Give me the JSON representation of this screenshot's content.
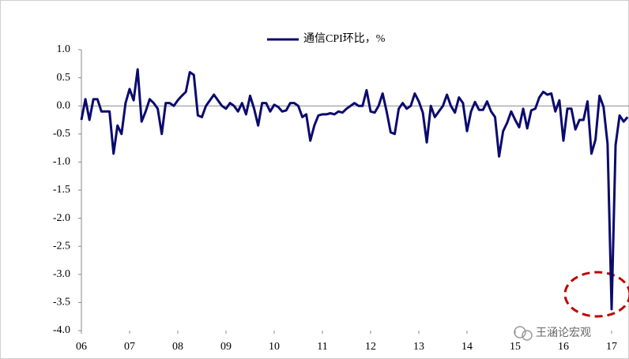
{
  "chart_data": {
    "type": "line",
    "legend_label": "通信CPI环比，%",
    "watermark": "王涵论宏观",
    "categories": [
      "06",
      null,
      null,
      null,
      null,
      null,
      null,
      null,
      null,
      null,
      null,
      null,
      "07",
      null,
      null,
      null,
      null,
      null,
      null,
      null,
      null,
      null,
      null,
      null,
      "08",
      null,
      null,
      null,
      null,
      null,
      null,
      null,
      null,
      null,
      null,
      null,
      "09",
      null,
      null,
      null,
      null,
      null,
      null,
      null,
      null,
      null,
      null,
      null,
      "10",
      null,
      null,
      null,
      null,
      null,
      null,
      null,
      null,
      null,
      null,
      null,
      "11",
      null,
      null,
      null,
      null,
      null,
      null,
      null,
      null,
      null,
      null,
      null,
      "12",
      null,
      null,
      null,
      null,
      null,
      null,
      null,
      null,
      null,
      null,
      null,
      "13",
      null,
      null,
      null,
      null,
      null,
      null,
      null,
      null,
      null,
      null,
      null,
      "14",
      null,
      null,
      null,
      null,
      null,
      null,
      null,
      null,
      null,
      null,
      null,
      "15",
      null,
      null,
      null,
      null,
      null,
      null,
      null,
      null,
      null,
      null,
      null,
      "16",
      null,
      null,
      null,
      null,
      null,
      null,
      null,
      null,
      null,
      null,
      null,
      "17",
      null,
      null,
      null,
      null
    ],
    "series": [
      {
        "name": "通信CPI环比，%",
        "color": "#0a0a6e",
        "values": [
          -0.25,
          0.12,
          -0.25,
          0.12,
          0.12,
          -0.1,
          -0.1,
          -0.1,
          -0.85,
          -0.35,
          -0.5,
          0.05,
          0.3,
          0.1,
          0.65,
          -0.28,
          -0.1,
          0.12,
          0.05,
          -0.05,
          -0.5,
          0.05,
          0.05,
          0.0,
          0.1,
          0.18,
          0.25,
          0.6,
          0.55,
          -0.17,
          -0.2,
          0.0,
          0.1,
          0.2,
          0.1,
          0.0,
          -0.05,
          0.05,
          0.0,
          -0.1,
          0.05,
          -0.15,
          0.18,
          -0.05,
          -0.35,
          0.05,
          0.05,
          -0.1,
          0.02,
          -0.02,
          -0.1,
          -0.08,
          0.05,
          0.05,
          0.0,
          -0.2,
          -0.15,
          -0.62,
          -0.35,
          -0.17,
          -0.15,
          -0.15,
          -0.13,
          -0.15,
          -0.1,
          -0.12,
          -0.05,
          0.0,
          0.05,
          0.0,
          0.0,
          0.28,
          -0.1,
          -0.12,
          0.0,
          0.22,
          -0.1,
          -0.47,
          -0.5,
          -0.05,
          0.05,
          -0.05,
          0.0,
          0.22,
          0.08,
          -0.12,
          -0.65,
          0.0,
          -0.2,
          -0.1,
          0.0,
          0.2,
          0.0,
          -0.12,
          0.15,
          0.05,
          -0.45,
          -0.1,
          0.07,
          -0.07,
          -0.07,
          0.08,
          -0.1,
          -0.2,
          -0.9,
          -0.45,
          -0.3,
          -0.1,
          -0.25,
          -0.38,
          -0.05,
          -0.4,
          -0.08,
          -0.05,
          0.15,
          0.25,
          0.2,
          0.22,
          -0.1,
          0.1,
          -0.62,
          -0.05,
          -0.05,
          -0.42,
          -0.25,
          -0.25,
          0.08,
          -0.85,
          -0.6,
          0.18,
          -0.02,
          -0.68,
          -3.62,
          -0.7,
          -0.17,
          -0.28,
          -0.2
        ]
      }
    ],
    "ylim": [
      -4.0,
      1.0
    ],
    "yticks": [
      {
        "value": 1.0,
        "label": "1.0"
      },
      0.5,
      {
        "value": 0.0,
        "label": "0.0"
      },
      -0.5,
      {
        "value": -1.0,
        "label": "-1.0"
      },
      -1.5,
      {
        "value": -2.0,
        "label": "-2.0"
      },
      -2.5,
      {
        "value": -3.0,
        "label": "-3.0"
      },
      -3.5,
      {
        "value": -4.0,
        "label": "-4.0"
      }
    ]
  }
}
